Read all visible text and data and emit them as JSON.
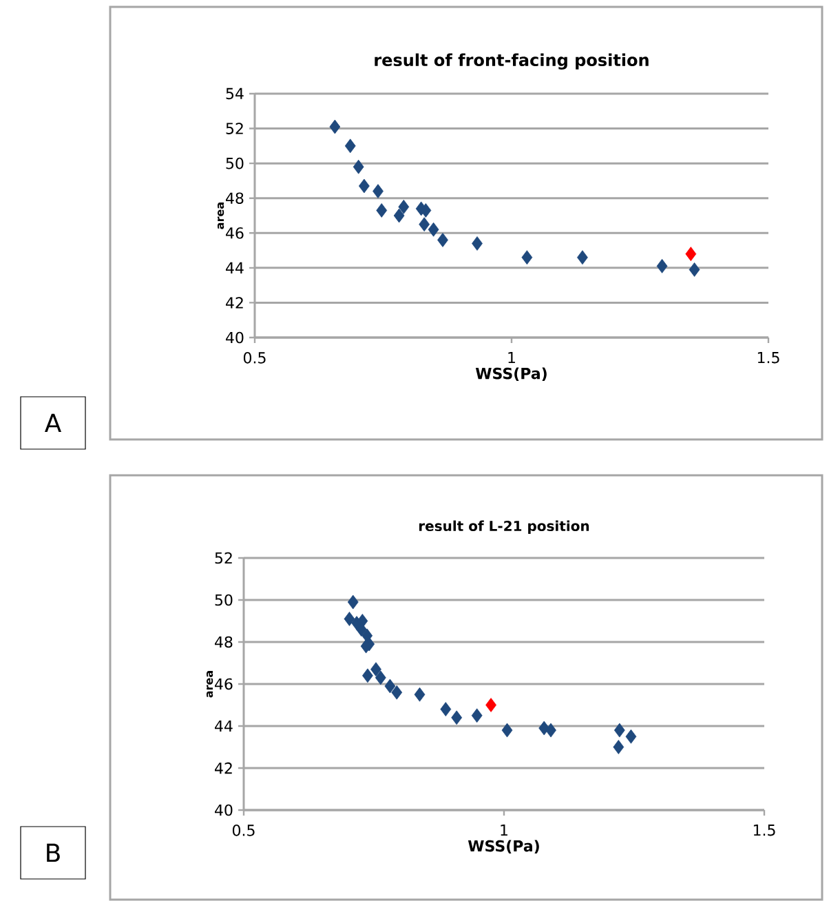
{
  "chart_data": [
    {
      "type": "scatter",
      "title": "result of front-facing position",
      "xlabel": "WSS(Pa)",
      "ylabel": "area",
      "annotations": [
        "A"
      ],
      "xlim": [
        0.5,
        1.5
      ],
      "xticks": [
        0.5,
        1,
        1.5
      ],
      "ylim": [
        40,
        54
      ],
      "yticks": [
        40,
        42,
        44,
        46,
        48,
        50,
        52,
        54
      ],
      "grid": "y",
      "marker": "diamond",
      "series": [
        {
          "color": "#1f497d",
          "x": [
            0.656,
            0.686,
            0.702,
            0.713,
            0.74,
            0.747,
            0.781,
            0.79,
            0.824,
            0.833,
            0.83,
            0.848,
            0.866,
            0.933,
            1.03,
            1.138,
            1.293,
            1.356
          ],
          "values": [
            52.1,
            51.0,
            49.8,
            48.7,
            48.4,
            47.3,
            47.0,
            47.5,
            47.4,
            47.3,
            46.5,
            46.2,
            45.6,
            45.4,
            44.6,
            44.6,
            44.1,
            43.9
          ]
        },
        {
          "color": "#ff0000",
          "x": [
            1.349
          ],
          "values": [
            44.8
          ]
        }
      ]
    },
    {
      "type": "scatter",
      "title": "result of L-21 position",
      "xlabel": "WSS(Pa)",
      "ylabel": "area",
      "annotations": [
        "B"
      ],
      "xlim": [
        0.5,
        1.5
      ],
      "xticks": [
        0.5,
        1,
        1.5
      ],
      "ylim": [
        40,
        52
      ],
      "yticks": [
        40,
        42,
        44,
        46,
        48,
        50,
        52
      ],
      "grid": "y",
      "marker": "diamond",
      "series": [
        {
          "color": "#1f497d",
          "x": [
            0.71,
            0.703,
            0.717,
            0.728,
            0.726,
            0.737,
            0.741,
            0.735,
            0.754,
            0.738,
            0.763,
            0.781,
            0.794,
            0.838,
            0.888,
            0.909,
            0.948,
            1.006,
            1.077,
            1.09,
            1.222,
            1.22,
            1.244
          ],
          "values": [
            49.9,
            49.1,
            48.9,
            49.0,
            48.6,
            48.3,
            47.9,
            47.8,
            46.7,
            46.4,
            46.3,
            45.9,
            45.6,
            45.5,
            44.8,
            44.4,
            44.5,
            43.8,
            43.9,
            43.8,
            43.8,
            43.0,
            43.5
          ]
        },
        {
          "color": "#ff0000",
          "x": [
            0.975
          ],
          "values": [
            45.0
          ]
        }
      ]
    }
  ]
}
